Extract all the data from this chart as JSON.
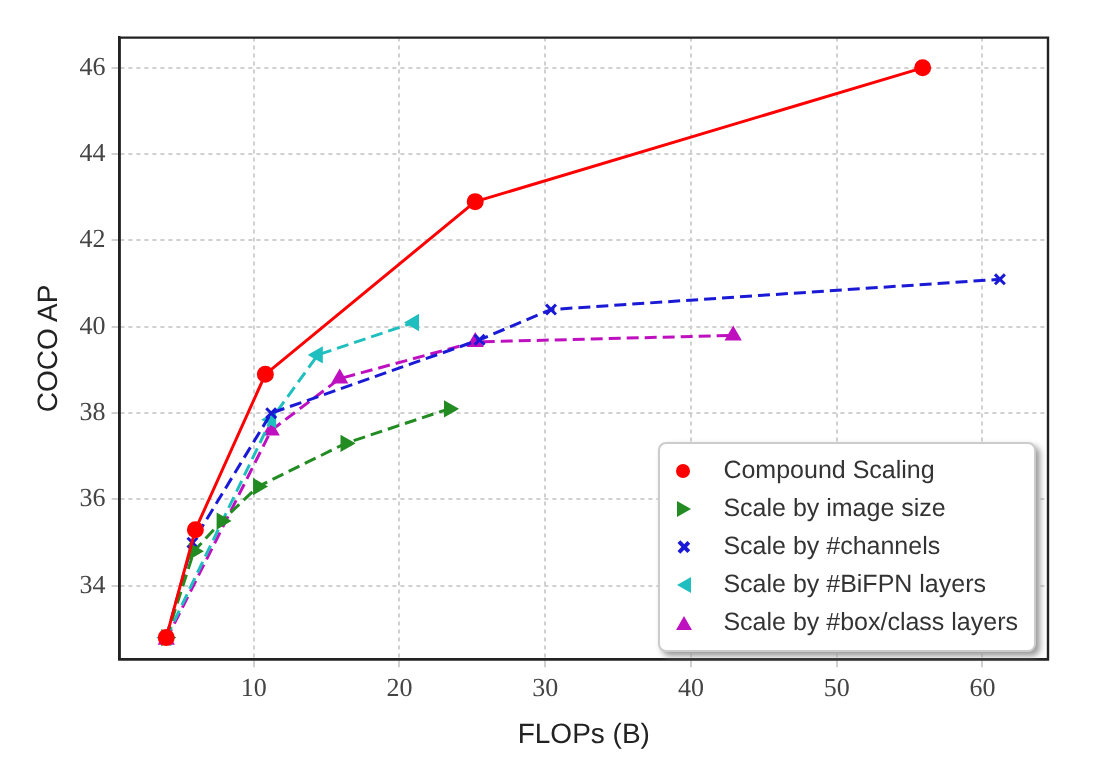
{
  "chart_data": {
    "type": "line",
    "xlabel": "FLOPs (B)",
    "ylabel": "COCO AP",
    "xlim": [
      0.8,
      64.5
    ],
    "xticks": [
      10,
      20,
      30,
      40,
      50,
      60
    ],
    "ylim": [
      32.3,
      46.7
    ],
    "yticks": [
      34,
      36,
      38,
      40,
      42,
      44,
      46
    ],
    "grid": true,
    "legend": "bottom right",
    "series": [
      {
        "name": "Compound Scaling",
        "color": "#ff0000",
        "marker": "circle",
        "line_style": "solid",
        "x": [
          4.0,
          6.0,
          10.8,
          25.2,
          55.9
        ],
        "values": [
          32.8,
          35.3,
          38.9,
          42.9,
          46.0
        ]
      },
      {
        "name": "Scale by image size",
        "color": "#228b22",
        "marker": "triangle-right",
        "line_style": "dashed",
        "x": [
          4.0,
          5.9,
          7.8,
          10.3,
          16.3,
          23.4
        ],
        "values": [
          32.8,
          34.8,
          35.5,
          36.3,
          37.3,
          38.1
        ]
      },
      {
        "name": "Scale by #channels",
        "color": "#1a1ad6",
        "marker": "cross",
        "line_style": "dashed",
        "x": [
          4.0,
          5.8,
          11.2,
          25.5,
          30.4,
          61.2
        ],
        "values": [
          32.8,
          35.0,
          38.0,
          39.7,
          40.4,
          41.1
        ]
      },
      {
        "name": "Scale by #BiFPN layers",
        "color": "#20bfbf",
        "marker": "triangle-left",
        "line_style": "dashed",
        "x": [
          4.0,
          11.2,
          14.4,
          21.0
        ],
        "values": [
          32.8,
          37.85,
          39.35,
          40.1
        ]
      },
      {
        "name": "Scale by #box/class layers",
        "color": "#bf10bf",
        "marker": "triangle",
        "line_style": "dashed",
        "x": [
          4.0,
          11.2,
          15.9,
          25.2,
          42.9
        ],
        "values": [
          32.75,
          37.6,
          38.8,
          39.65,
          39.8
        ]
      }
    ]
  }
}
